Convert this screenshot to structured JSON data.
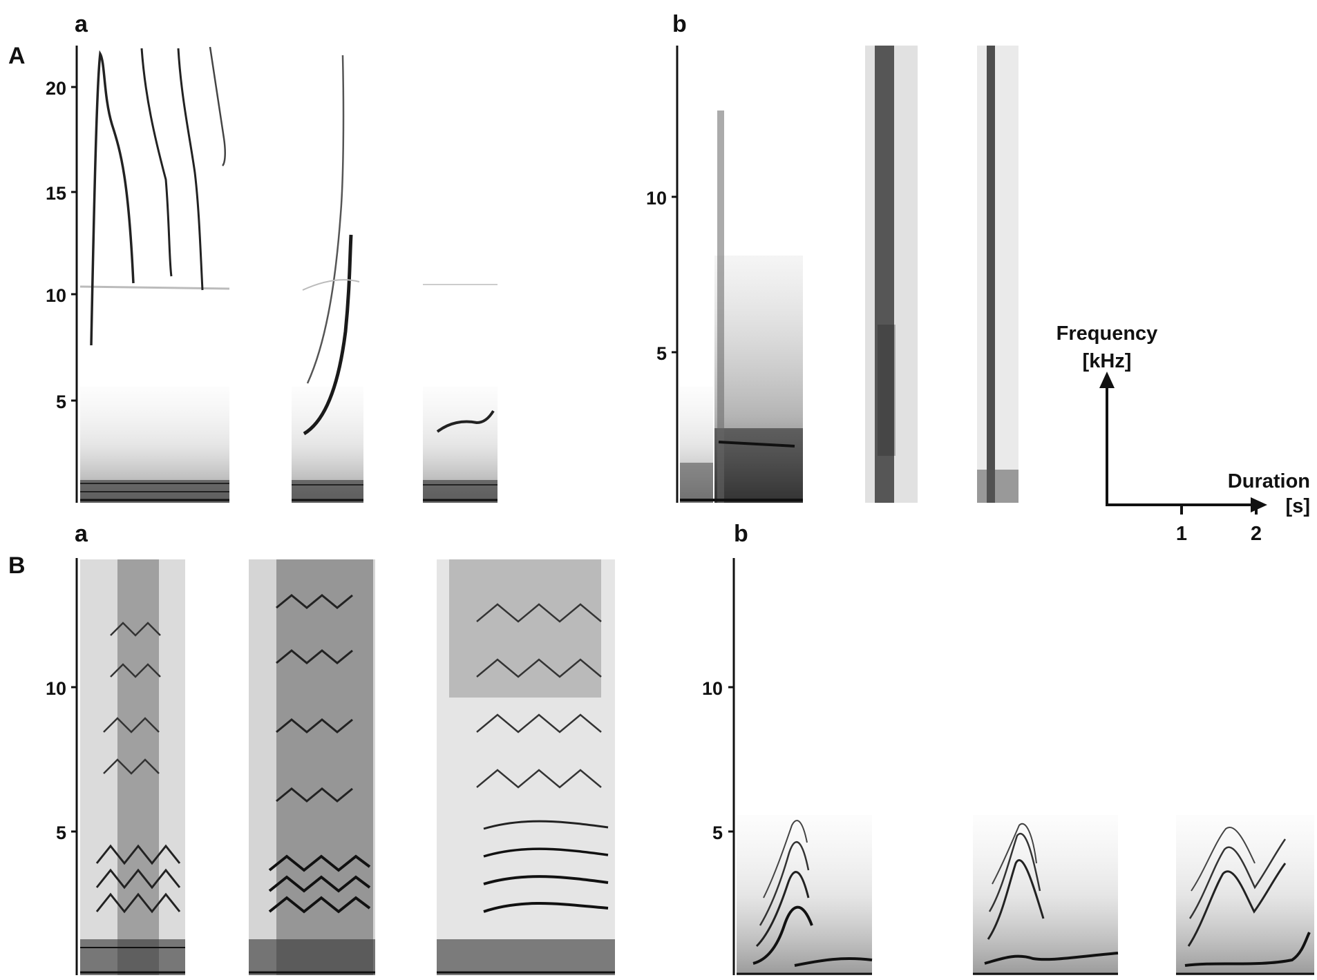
{
  "figure": {
    "panel_A": {
      "label": "A",
      "a": {
        "label": "a",
        "yticks": [
          "20",
          "15",
          "10",
          "5"
        ]
      },
      "b": {
        "label": "b",
        "yticks": [
          "10",
          "5"
        ]
      }
    },
    "panel_B": {
      "label": "B",
      "a": {
        "label": "a",
        "yticks": [
          "10",
          "5"
        ]
      },
      "b": {
        "label": "b",
        "yticks": [
          "10",
          "5"
        ]
      }
    },
    "scale": {
      "y_label_line1": "Frequency",
      "y_label_line2": "[kHz]",
      "x_label_line1": "Duration",
      "x_label_line2": "[s]",
      "xticks": [
        "1",
        "2"
      ]
    }
  },
  "colors": {
    "ink": "#111111",
    "spectrogram_dark": "#1a1a1a",
    "spectrogram_mid": "#666666",
    "background": "#ffffff"
  }
}
